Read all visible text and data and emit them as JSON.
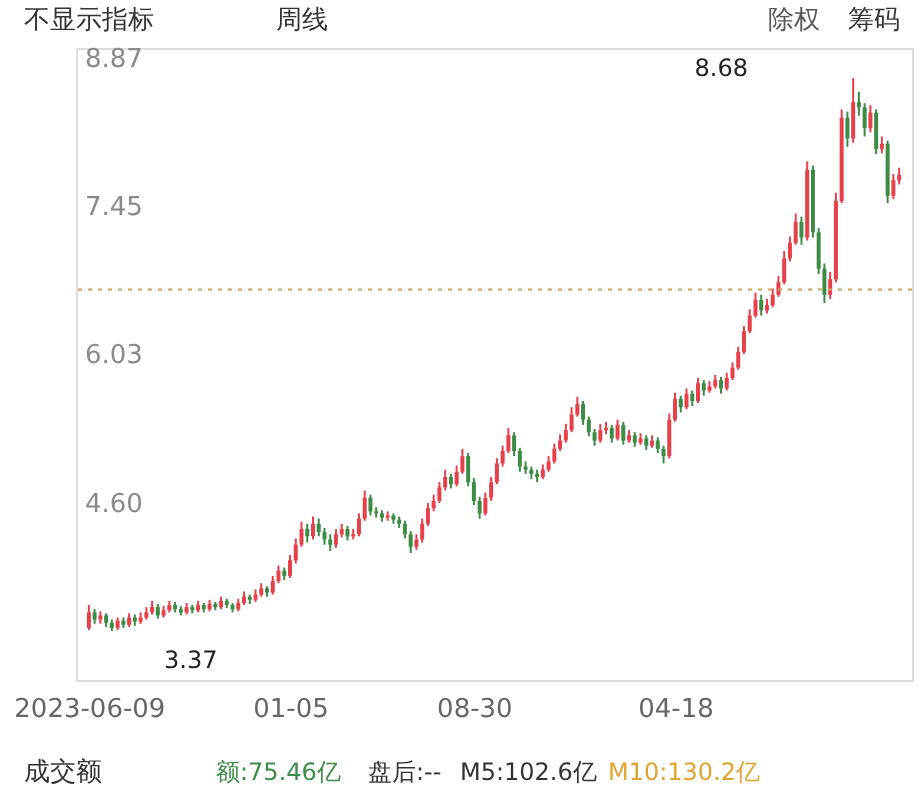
{
  "chart_data": {
    "type": "candlestick",
    "categories": [
      "2023-06-09",
      null,
      null,
      null,
      null,
      null,
      null,
      null,
      null,
      null,
      null,
      null,
      null,
      null,
      null,
      null,
      null,
      null,
      null,
      null,
      null,
      null,
      null,
      null,
      null,
      null,
      null,
      null,
      null,
      null,
      null,
      null,
      null,
      null,
      null,
      "01-05",
      null,
      null,
      null,
      null,
      null,
      null,
      null,
      null,
      null,
      null,
      null,
      null,
      null,
      null,
      null,
      null,
      null,
      null,
      null,
      null,
      null,
      null,
      null,
      null,
      null,
      null,
      null,
      null,
      null,
      null,
      null,
      "08-30",
      null,
      null,
      null,
      null,
      null,
      null,
      null,
      null,
      null,
      null,
      null,
      null,
      null,
      null,
      null,
      null,
      null,
      null,
      null,
      null,
      null,
      null,
      null,
      null,
      null,
      null,
      null,
      null,
      null,
      null,
      null,
      null,
      null,
      null,
      "04-18",
      null,
      null,
      null,
      null,
      null,
      null,
      null,
      null,
      null,
      null,
      null,
      null,
      null,
      null,
      null,
      null,
      null,
      null,
      null,
      null,
      null,
      null,
      null,
      null,
      null,
      null,
      null,
      null,
      null,
      null,
      null,
      null,
      null,
      null,
      null,
      null,
      null,
      null,
      null
    ],
    "ohlc": [
      [
        3.4,
        3.62,
        3.38,
        3.55
      ],
      [
        3.55,
        3.58,
        3.44,
        3.48
      ],
      [
        3.48,
        3.56,
        3.44,
        3.52
      ],
      [
        3.52,
        3.54,
        3.41,
        3.45
      ],
      [
        3.45,
        3.48,
        3.37,
        3.4
      ],
      [
        3.4,
        3.5,
        3.38,
        3.47
      ],
      [
        3.47,
        3.5,
        3.4,
        3.43
      ],
      [
        3.43,
        3.54,
        3.41,
        3.5
      ],
      [
        3.5,
        3.53,
        3.42,
        3.46
      ],
      [
        3.46,
        3.55,
        3.44,
        3.5
      ],
      [
        3.5,
        3.6,
        3.48,
        3.55
      ],
      [
        3.55,
        3.66,
        3.53,
        3.6
      ],
      [
        3.6,
        3.63,
        3.49,
        3.52
      ],
      [
        3.52,
        3.61,
        3.5,
        3.57
      ],
      [
        3.57,
        3.66,
        3.55,
        3.62
      ],
      [
        3.62,
        3.65,
        3.55,
        3.58
      ],
      [
        3.58,
        3.61,
        3.52,
        3.55
      ],
      [
        3.55,
        3.64,
        3.53,
        3.6
      ],
      [
        3.6,
        3.62,
        3.54,
        3.57
      ],
      [
        3.57,
        3.66,
        3.55,
        3.62
      ],
      [
        3.62,
        3.64,
        3.55,
        3.58
      ],
      [
        3.58,
        3.67,
        3.56,
        3.63
      ],
      [
        3.63,
        3.65,
        3.57,
        3.6
      ],
      [
        3.6,
        3.7,
        3.58,
        3.66
      ],
      [
        3.66,
        3.68,
        3.59,
        3.62
      ],
      [
        3.62,
        3.64,
        3.55,
        3.58
      ],
      [
        3.58,
        3.68,
        3.56,
        3.64
      ],
      [
        3.64,
        3.75,
        3.62,
        3.7
      ],
      [
        3.7,
        3.72,
        3.63,
        3.67
      ],
      [
        3.67,
        3.77,
        3.65,
        3.72
      ],
      [
        3.72,
        3.83,
        3.7,
        3.78
      ],
      [
        3.78,
        3.8,
        3.7,
        3.74
      ],
      [
        3.74,
        3.9,
        3.72,
        3.85
      ],
      [
        3.85,
        4.0,
        3.83,
        3.95
      ],
      [
        3.95,
        3.98,
        3.86,
        3.9
      ],
      [
        3.9,
        4.1,
        3.88,
        4.05
      ],
      [
        4.05,
        4.26,
        4.02,
        4.2
      ],
      [
        4.2,
        4.42,
        4.18,
        4.35
      ],
      [
        4.35,
        4.4,
        4.22,
        4.28
      ],
      [
        4.28,
        4.47,
        4.25,
        4.4
      ],
      [
        4.4,
        4.45,
        4.28,
        4.32
      ],
      [
        4.32,
        4.36,
        4.2,
        4.25
      ],
      [
        4.25,
        4.3,
        4.14,
        4.2
      ],
      [
        4.2,
        4.35,
        4.17,
        4.3
      ],
      [
        4.3,
        4.4,
        4.27,
        4.35
      ],
      [
        4.35,
        4.38,
        4.24,
        4.28
      ],
      [
        4.28,
        4.35,
        4.25,
        4.3
      ],
      [
        4.3,
        4.5,
        4.28,
        4.45
      ],
      [
        4.45,
        4.72,
        4.43,
        4.65
      ],
      [
        4.65,
        4.68,
        4.48,
        4.52
      ],
      [
        4.52,
        4.56,
        4.46,
        4.5
      ],
      [
        4.5,
        4.53,
        4.42,
        4.46
      ],
      [
        4.46,
        4.52,
        4.43,
        4.48
      ],
      [
        4.48,
        4.5,
        4.4,
        4.44
      ],
      [
        4.44,
        4.47,
        4.36,
        4.4
      ],
      [
        4.4,
        4.43,
        4.26,
        4.3
      ],
      [
        4.3,
        4.33,
        4.12,
        4.18
      ],
      [
        4.18,
        4.3,
        4.15,
        4.25
      ],
      [
        4.25,
        4.45,
        4.22,
        4.4
      ],
      [
        4.4,
        4.6,
        4.38,
        4.55
      ],
      [
        4.55,
        4.68,
        4.52,
        4.62
      ],
      [
        4.62,
        4.8,
        4.6,
        4.75
      ],
      [
        4.75,
        4.92,
        4.72,
        4.85
      ],
      [
        4.85,
        4.88,
        4.74,
        4.78
      ],
      [
        4.78,
        4.96,
        4.76,
        4.9
      ],
      [
        4.9,
        5.12,
        4.88,
        5.05
      ],
      [
        5.05,
        5.08,
        4.76,
        4.8
      ],
      [
        4.8,
        4.84,
        4.58,
        4.62
      ],
      [
        4.62,
        4.66,
        4.45,
        4.5
      ],
      [
        4.5,
        4.7,
        4.48,
        4.65
      ],
      [
        4.65,
        4.85,
        4.62,
        4.8
      ],
      [
        4.8,
        5.03,
        4.78,
        4.98
      ],
      [
        4.98,
        5.15,
        4.95,
        5.1
      ],
      [
        5.1,
        5.32,
        5.08,
        5.25
      ],
      [
        5.25,
        5.28,
        5.05,
        5.1
      ],
      [
        5.1,
        5.13,
        4.9,
        4.95
      ],
      [
        4.95,
        5.0,
        4.88,
        4.92
      ],
      [
        4.92,
        4.95,
        4.83,
        4.88
      ],
      [
        4.88,
        4.92,
        4.8,
        4.85
      ],
      [
        4.85,
        4.97,
        4.83,
        4.92
      ],
      [
        4.92,
        5.05,
        4.9,
        5.0
      ],
      [
        5.0,
        5.17,
        4.98,
        5.12
      ],
      [
        5.12,
        5.26,
        5.1,
        5.2
      ],
      [
        5.2,
        5.36,
        5.18,
        5.3
      ],
      [
        5.3,
        5.52,
        5.28,
        5.45
      ],
      [
        5.45,
        5.62,
        5.43,
        5.55
      ],
      [
        5.55,
        5.58,
        5.35,
        5.4
      ],
      [
        5.4,
        5.43,
        5.24,
        5.28
      ],
      [
        5.28,
        5.31,
        5.15,
        5.2
      ],
      [
        5.2,
        5.36,
        5.18,
        5.3
      ],
      [
        5.3,
        5.38,
        5.26,
        5.32
      ],
      [
        5.32,
        5.35,
        5.18,
        5.22
      ],
      [
        5.22,
        5.4,
        5.2,
        5.35
      ],
      [
        5.35,
        5.38,
        5.16,
        5.2
      ],
      [
        5.2,
        5.3,
        5.18,
        5.25
      ],
      [
        5.25,
        5.28,
        5.14,
        5.18
      ],
      [
        5.18,
        5.27,
        5.16,
        5.22
      ],
      [
        5.22,
        5.25,
        5.11,
        5.15
      ],
      [
        5.15,
        5.25,
        5.13,
        5.2
      ],
      [
        5.2,
        5.23,
        5.08,
        5.12
      ],
      [
        5.12,
        5.15,
        4.98,
        5.05
      ],
      [
        5.05,
        5.46,
        5.03,
        5.4
      ],
      [
        5.4,
        5.66,
        5.38,
        5.6
      ],
      [
        5.6,
        5.63,
        5.47,
        5.52
      ],
      [
        5.52,
        5.7,
        5.5,
        5.65
      ],
      [
        5.65,
        5.68,
        5.53,
        5.58
      ],
      [
        5.58,
        5.8,
        5.56,
        5.75
      ],
      [
        5.75,
        5.78,
        5.63,
        5.68
      ],
      [
        5.68,
        5.77,
        5.66,
        5.72
      ],
      [
        5.72,
        5.83,
        5.7,
        5.78
      ],
      [
        5.78,
        5.81,
        5.65,
        5.7
      ],
      [
        5.7,
        5.85,
        5.68,
        5.8
      ],
      [
        5.8,
        5.95,
        5.78,
        5.9
      ],
      [
        5.9,
        6.1,
        5.88,
        6.05
      ],
      [
        6.05,
        6.3,
        6.03,
        6.25
      ],
      [
        6.25,
        6.46,
        6.23,
        6.4
      ],
      [
        6.4,
        6.62,
        6.38,
        6.55
      ],
      [
        6.55,
        6.6,
        6.4,
        6.45
      ],
      [
        6.45,
        6.56,
        6.42,
        6.5
      ],
      [
        6.5,
        6.66,
        6.48,
        6.6
      ],
      [
        6.6,
        6.78,
        6.58,
        6.72
      ],
      [
        6.72,
        7.02,
        6.7,
        6.95
      ],
      [
        6.95,
        7.16,
        6.92,
        7.1
      ],
      [
        7.1,
        7.38,
        7.08,
        7.3
      ],
      [
        7.3,
        7.35,
        7.08,
        7.15
      ],
      [
        7.15,
        7.88,
        7.12,
        7.8
      ],
      [
        7.8,
        7.84,
        7.15,
        7.2
      ],
      [
        7.2,
        7.24,
        6.8,
        6.85
      ],
      [
        6.85,
        6.9,
        6.52,
        6.6
      ],
      [
        6.6,
        6.82,
        6.56,
        6.75
      ],
      [
        6.75,
        7.58,
        6.72,
        7.5
      ],
      [
        7.5,
        8.38,
        7.48,
        8.3
      ],
      [
        8.3,
        8.36,
        8.02,
        8.1
      ],
      [
        8.1,
        8.68,
        8.06,
        8.45
      ],
      [
        8.45,
        8.55,
        8.32,
        8.4
      ],
      [
        8.4,
        8.44,
        8.12,
        8.2
      ],
      [
        8.2,
        8.42,
        8.16,
        8.35
      ],
      [
        8.35,
        8.38,
        7.95,
        8.0
      ],
      [
        8.0,
        8.12,
        7.96,
        8.05
      ],
      [
        8.05,
        8.08,
        7.48,
        7.55
      ],
      [
        7.55,
        7.76,
        7.52,
        7.7
      ],
      [
        7.7,
        7.82,
        7.66,
        7.75
      ]
    ],
    "colors": [
      "#e5404b",
      "#3d8b47",
      "#e5404b",
      "#3d8b47",
      "#3d8b47",
      "#e5404b",
      "#3d8b47",
      "#e5404b",
      "#3d8b47",
      "#e5404b",
      "#e5404b",
      "#e5404b",
      "#3d8b47",
      "#e5404b",
      "#e5404b",
      "#3d8b47",
      "#3d8b47",
      "#e5404b",
      "#3d8b47",
      "#e5404b",
      "#3d8b47",
      "#e5404b",
      "#3d8b47",
      "#e5404b",
      "#3d8b47",
      "#3d8b47",
      "#e5404b",
      "#e5404b",
      "#3d8b47",
      "#e5404b",
      "#e5404b",
      "#3d8b47",
      "#e5404b",
      "#e5404b",
      "#3d8b47",
      "#e5404b",
      "#e5404b",
      "#e5404b",
      "#3d8b47",
      "#e5404b",
      "#3d8b47",
      "#3d8b47",
      "#3d8b47",
      "#e5404b",
      "#e5404b",
      "#3d8b47",
      "#e5404b",
      "#e5404b",
      "#e5404b",
      "#3d8b47",
      "#3d8b47",
      "#3d8b47",
      "#e5404b",
      "#3d8b47",
      "#3d8b47",
      "#3d8b47",
      "#3d8b47",
      "#e5404b",
      "#e5404b",
      "#e5404b",
      "#e5404b",
      "#e5404b",
      "#e5404b",
      "#3d8b47",
      "#e5404b",
      "#e5404b",
      "#3d8b47",
      "#3d8b47",
      "#3d8b47",
      "#e5404b",
      "#e5404b",
      "#e5404b",
      "#e5404b",
      "#e5404b",
      "#3d8b47",
      "#3d8b47",
      "#3d8b47",
      "#3d8b47",
      "#3d8b47",
      "#e5404b",
      "#e5404b",
      "#e5404b",
      "#e5404b",
      "#e5404b",
      "#e5404b",
      "#e5404b",
      "#3d8b47",
      "#3d8b47",
      "#3d8b47",
      "#e5404b",
      "#e5404b",
      "#3d8b47",
      "#e5404b",
      "#3d8b47",
      "#e5404b",
      "#3d8b47",
      "#e5404b",
      "#3d8b47",
      "#e5404b",
      "#3d8b47",
      "#3d8b47",
      "#e5404b",
      "#e5404b",
      "#3d8b47",
      "#e5404b",
      "#3d8b47",
      "#e5404b",
      "#3d8b47",
      "#e5404b",
      "#e5404b",
      "#3d8b47",
      "#e5404b",
      "#e5404b",
      "#e5404b",
      "#e5404b",
      "#e5404b",
      "#e5404b",
      "#3d8b47",
      "#e5404b",
      "#e5404b",
      "#e5404b",
      "#e5404b",
      "#e5404b",
      "#e5404b",
      "#3d8b47",
      "#e5404b",
      "#3d8b47",
      "#3d8b47",
      "#3d8b47",
      "#e5404b",
      "#e5404b",
      "#e5404b",
      "#3d8b47",
      "#e5404b",
      "#3d8b47",
      "#3d8b47",
      "#e5404b",
      "#3d8b47",
      "#e5404b",
      "#3d8b47",
      "#e5404b",
      "#e5404b"
    ],
    "ylim": [
      2.9,
      8.97
    ],
    "yticks": [
      {
        "value": 4.6,
        "label": "4.60"
      },
      6.03,
      7.45,
      8.87
    ],
    "grid": false,
    "ref_lines": [
      {
        "axis": "y",
        "value": 6.65,
        "color": "#c9a35f",
        "line_style": "dotted"
      }
    ],
    "annotations": [
      "不显示指标",
      "周线",
      "除权",
      "筹码",
      "成交额",
      "额:75.46亿",
      "盘后:--",
      "M5:102.6亿",
      "M10:130.2亿",
      "8.68",
      "3.37"
    ]
  }
}
